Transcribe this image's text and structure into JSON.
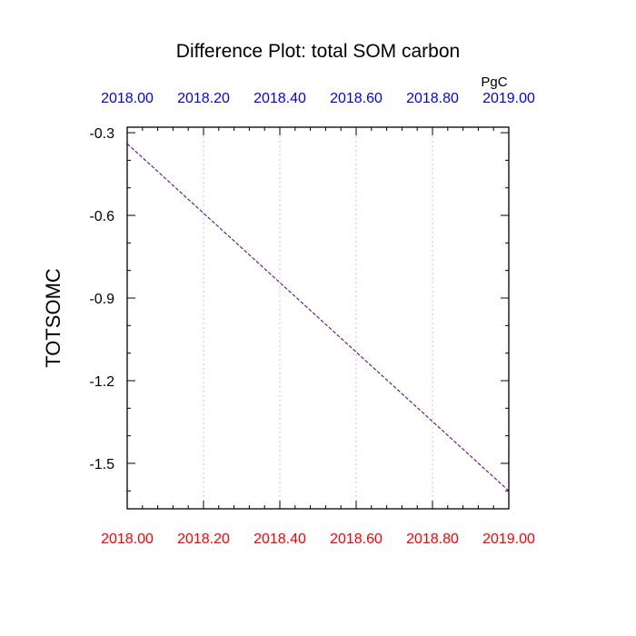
{
  "chart_data": {
    "type": "line",
    "title": "Difference Plot: total SOM carbon",
    "units_label": "PgC",
    "ylabel": "TOTSOMC",
    "xlim": [
      2018.0,
      2019.0
    ],
    "ylim": [
      -1.665,
      -0.28
    ],
    "x_ticks": [
      "2018.00",
      "2018.20",
      "2018.40",
      "2018.60",
      "2018.80",
      "2019.00"
    ],
    "x_tick_values": [
      2018.0,
      2018.2,
      2018.4,
      2018.6,
      2018.8,
      2019.0
    ],
    "y_ticks": [
      "-0.3",
      "-0.6",
      "-0.9",
      "-1.2",
      "-1.5"
    ],
    "y_tick_values": [
      -0.3,
      -0.6,
      -0.9,
      -1.2,
      -1.5
    ],
    "grid": "vertical dotted",
    "x_top_tick_color": "#0000ff",
    "x_bottom_tick_color": "#ff0000",
    "series": [
      {
        "color": "#5a0aa0",
        "dash": true,
        "x": [
          2018.0,
          2019.0
        ],
        "y": [
          -0.34,
          -1.6
        ]
      }
    ]
  }
}
